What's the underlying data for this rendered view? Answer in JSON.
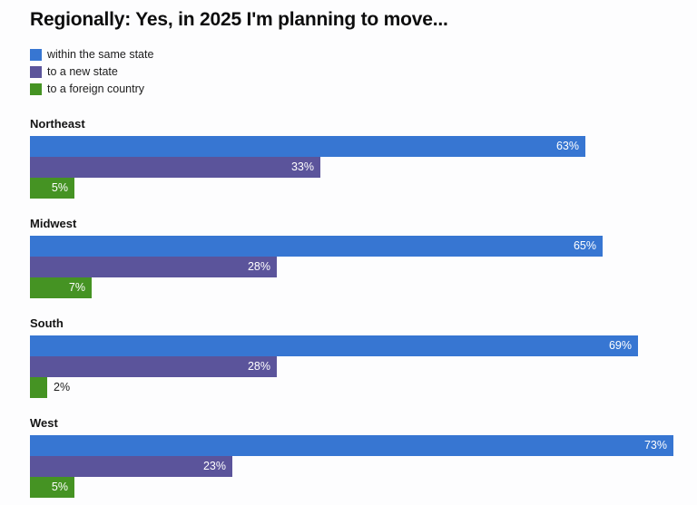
{
  "chart_data": {
    "type": "bar",
    "orientation": "horizontal",
    "title": "Regionally: Yes, in 2025 I'm planning to move...",
    "categories": [
      "Northeast",
      "Midwest",
      "South",
      "West"
    ],
    "series": [
      {
        "name": "within the same state",
        "color": "#3776D2",
        "values": [
          63,
          65,
          69,
          73
        ]
      },
      {
        "name": "to a new state",
        "color": "#5B549B",
        "values": [
          33,
          28,
          28,
          23
        ]
      },
      {
        "name": "to a foreign country",
        "color": "#459323",
        "values": [
          5,
          7,
          2,
          5
        ]
      }
    ],
    "value_suffix": "%",
    "value_labels": [
      [
        "63%",
        "33%",
        "5%"
      ],
      [
        "65%",
        "28%",
        "7%"
      ],
      [
        "69%",
        "28%",
        "2%"
      ],
      [
        "73%",
        "23%",
        "5%"
      ]
    ],
    "xlim": [
      0,
      75.5
    ],
    "grid": false,
    "axis_ticks_visible": false,
    "legend_position": "top-left",
    "background_color": "#fdfdfe",
    "value_label_color_inside": "#ffffff",
    "value_label_color_outside": "#212121"
  }
}
